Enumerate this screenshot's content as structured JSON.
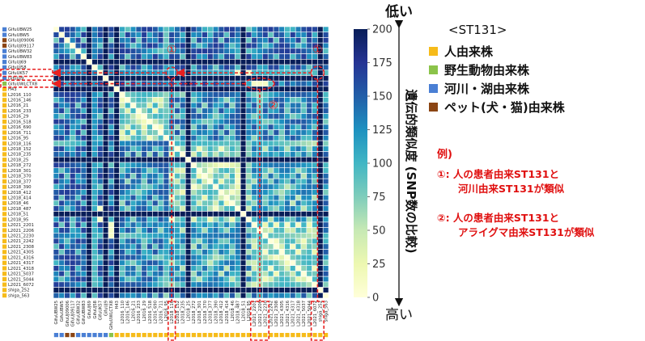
{
  "chart_data": {
    "type": "heatmap",
    "title": "",
    "labels": [
      "GifuUBW25",
      "GifuUBW5",
      "GifuUJ09006",
      "GifuUJ09117",
      "GifuUBW32",
      "GifuUBW83",
      "GifuUJ69",
      "GifuUJ58",
      "GifuUK57",
      "GifuUJ9",
      "GifuUWLCTX8",
      "H43",
      "L2016_110",
      "L2016_146",
      "L2016_21",
      "L2016_233",
      "L2016_29",
      "L2016_518",
      "L2016_690",
      "L2016_711",
      "L2016_95",
      "L2018_116",
      "L2018_152",
      "L2018_235",
      "L2018_25",
      "L2018_272",
      "L2018_301",
      "L2018_370",
      "L2018_377",
      "L2018_390",
      "L2018_412",
      "L2018_414",
      "L2018_46",
      "L2018_487",
      "L2018_51",
      "L2018_95",
      "L2021_2201",
      "L2021_2206",
      "L2021_2230",
      "L2021_2242",
      "L2021_2308",
      "L2021_4305",
      "L2021_4316",
      "L2021_4317",
      "L2021_4318",
      "L2021_5037",
      "L2021_5044",
      "L2021_6072",
      "shiga_252",
      "shiga_563"
    ],
    "label_sources": [
      "river",
      "river",
      "pet",
      "pet",
      "river",
      "river",
      "river",
      "river",
      "river",
      "river",
      "wildlife",
      "human",
      "human",
      "human",
      "human",
      "human",
      "human",
      "human",
      "human",
      "human",
      "human",
      "human",
      "human",
      "human",
      "human",
      "human",
      "human",
      "human",
      "human",
      "human",
      "human",
      "human",
      "human",
      "human",
      "human",
      "human",
      "human",
      "human",
      "human",
      "human",
      "human",
      "human",
      "human",
      "human",
      "human",
      "human",
      "human",
      "human",
      "human",
      "human"
    ],
    "colorbar": {
      "ticks": [
        0,
        25,
        50,
        75,
        100,
        125,
        150,
        175,
        200
      ],
      "min": 0,
      "max": 200,
      "colors": [
        "#ffffd9",
        "#edf8b1",
        "#c7e9b4",
        "#7fcdbb",
        "#41b6c4",
        "#1d91c0",
        "#225ea8",
        "#253494",
        "#081d58"
      ]
    },
    "similarity_axis": {
      "low": "低い",
      "high": "高い",
      "label": "遺伝的類似度 (SNP数の比較)"
    },
    "similar_pairs": [
      {
        "marker": "①",
        "a": "GifuUK57",
        "b": "L2018_487"
      },
      {
        "marker": "①",
        "a": "GifuUK57",
        "b": "L2018_95"
      },
      {
        "marker": "②",
        "a": "GifuUWLCTX8",
        "b": "L2021_2201"
      },
      {
        "marker": "②",
        "a": "GifuUWLCTX8",
        "b": "L2021_2206"
      },
      {
        "marker": "②",
        "a": "GifuUWLCTX8",
        "b": "L2021_2230"
      }
    ],
    "markers": {
      "one": "①",
      "two": "②"
    }
  },
  "legend": {
    "title": "<ST131>",
    "items": [
      {
        "label": "人由来株",
        "color": "#f6bb1a"
      },
      {
        "label": "野生動物由来株",
        "color": "#8bc34a"
      },
      {
        "label": "河川・湖由来株",
        "color": "#4a7fd4"
      },
      {
        "label": "ペット(犬・猫)由来株",
        "color": "#8b4513"
      }
    ]
  },
  "example": {
    "title": "例)",
    "line1a": "①: 人の患者由来ST131と",
    "line1b": "河川由来ST131が類似",
    "line2a": "②: 人の患者由来ST131と",
    "line2b": "アライグマ由来ST131が類似"
  },
  "colors": {
    "highlight": "#e82020",
    "cell_border": "#ffffff"
  }
}
